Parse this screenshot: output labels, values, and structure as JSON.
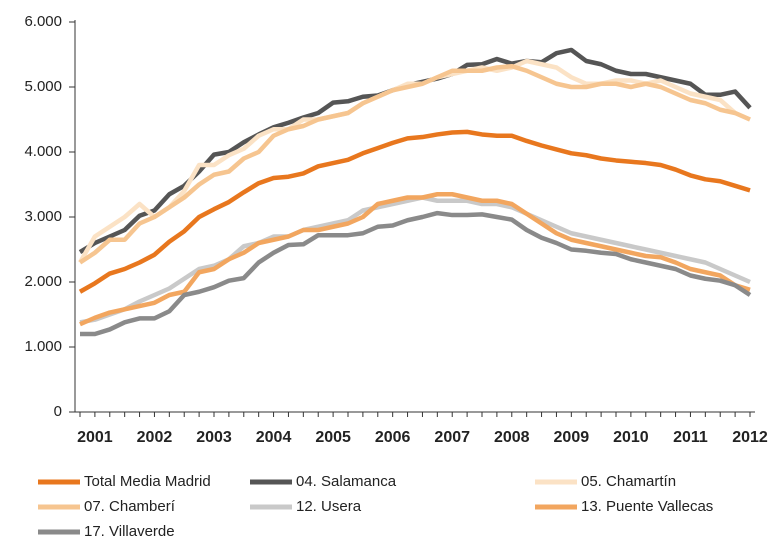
{
  "chart_data": {
    "type": "line",
    "categories": [
      null,
      "2001",
      null,
      null,
      null,
      "2002",
      null,
      null,
      null,
      "2003",
      null,
      null,
      null,
      "2004",
      null,
      null,
      null,
      "2005",
      null,
      null,
      null,
      "2006",
      null,
      null,
      null,
      "2007",
      null,
      null,
      null,
      "2008",
      null,
      null,
      null,
      "2009",
      null,
      null,
      null,
      "2010",
      null,
      null,
      null,
      "2011",
      null,
      null,
      null,
      "2012"
    ],
    "ylim": [
      0,
      6000
    ],
    "yticks": [
      0,
      {
        "value": 1000,
        "label": "1.000"
      },
      {
        "value": 2000,
        "label": "2.000"
      },
      {
        "value": 3000,
        "label": "3.000"
      },
      {
        "value": 4000,
        "label": "4.000"
      },
      {
        "value": 5000,
        "label": "5.000"
      },
      {
        "value": 6000,
        "label": "6.000"
      }
    ],
    "series": [
      {
        "name": "Total Media Madrid",
        "color": "#e8771e",
        "values": [
          1850,
          1980,
          2130,
          2200,
          2300,
          2420,
          2620,
          2780,
          3000,
          3120,
          3230,
          3380,
          3520,
          3600,
          3620,
          3670,
          3780,
          3830,
          3880,
          3980,
          4060,
          4140,
          4210,
          4230,
          4270,
          4300,
          4310,
          4270,
          4250,
          4250,
          4170,
          4100,
          4040,
          3980,
          3950,
          3900,
          3870,
          3850,
          3830,
          3800,
          3730,
          3640,
          3580,
          3550,
          3480,
          3410
        ]
      },
      {
        "name": "04. Salamanca",
        "color": "#555555",
        "values": [
          2460,
          2600,
          2700,
          2800,
          3020,
          3100,
          3350,
          3480,
          3700,
          3960,
          4000,
          4150,
          4270,
          4380,
          4450,
          4530,
          4600,
          4760,
          4780,
          4850,
          4870,
          4950,
          5030,
          5080,
          5130,
          5200,
          5340,
          5350,
          5430,
          5360,
          5400,
          5380,
          5520,
          5570,
          5400,
          5350,
          5250,
          5200,
          5200,
          5150,
          5100,
          5050,
          4880,
          4880,
          4930,
          4680
        ]
      },
      {
        "name": "05. Chamartín",
        "color": "#fbe2c5",
        "values": [
          2300,
          2700,
          2850,
          3000,
          3200,
          3000,
          3150,
          3400,
          3800,
          3800,
          3950,
          4050,
          4250,
          4350,
          4350,
          4500,
          4500,
          4550,
          4600,
          4750,
          4850,
          4950,
          5050,
          5050,
          5150,
          5200,
          5250,
          5300,
          5250,
          5300,
          5400,
          5350,
          5300,
          5150,
          5050,
          5050,
          5100,
          5100,
          5050,
          5100,
          5000,
          4900,
          4850,
          4800,
          4600,
          4500
        ]
      },
      {
        "name": "07. Chamberí",
        "color": "#f6c590",
        "values": [
          2300,
          2450,
          2650,
          2650,
          2900,
          3000,
          3150,
          3300,
          3500,
          3650,
          3700,
          3900,
          4000,
          4250,
          4350,
          4400,
          4500,
          4550,
          4600,
          4750,
          4850,
          4950,
          5000,
          5050,
          5150,
          5250,
          5250,
          5250,
          5300,
          5320,
          5250,
          5150,
          5050,
          5000,
          5000,
          5050,
          5050,
          5000,
          5050,
          5000,
          4900,
          4800,
          4750,
          4650,
          4600,
          4500
        ]
      },
      {
        "name": "12. Usera",
        "color": "#c9c9c9",
        "values": [
          1380,
          1420,
          1500,
          1580,
          1700,
          1800,
          1900,
          2050,
          2200,
          2250,
          2350,
          2550,
          2600,
          2700,
          2700,
          2800,
          2850,
          2900,
          2950,
          3100,
          3150,
          3200,
          3250,
          3300,
          3250,
          3250,
          3250,
          3200,
          3200,
          3150,
          3050,
          2950,
          2850,
          2750,
          2700,
          2650,
          2600,
          2550,
          2500,
          2450,
          2400,
          2350,
          2300,
          2200,
          2100,
          2000
        ]
      },
      {
        "name": "13. Puente Vallecas",
        "color": "#f2a65f",
        "values": [
          1350,
          1450,
          1530,
          1580,
          1630,
          1680,
          1800,
          1850,
          2150,
          2200,
          2350,
          2450,
          2600,
          2650,
          2700,
          2800,
          2800,
          2850,
          2900,
          3000,
          3200,
          3250,
          3300,
          3300,
          3350,
          3350,
          3300,
          3250,
          3250,
          3200,
          3050,
          2900,
          2750,
          2650,
          2600,
          2550,
          2500,
          2450,
          2400,
          2380,
          2300,
          2200,
          2150,
          2100,
          1950,
          1880
        ]
      },
      {
        "name": "17. Villaverde",
        "color": "#8a8a8a",
        "values": [
          1200,
          1200,
          1270,
          1380,
          1440,
          1440,
          1550,
          1800,
          1850,
          1920,
          2020,
          2060,
          2300,
          2450,
          2570,
          2580,
          2720,
          2720,
          2720,
          2750,
          2850,
          2870,
          2950,
          3000,
          3060,
          3030,
          3030,
          3040,
          3000,
          2960,
          2800,
          2680,
          2600,
          2500,
          2480,
          2450,
          2430,
          2350,
          2300,
          2250,
          2200,
          2100,
          2050,
          2020,
          1950,
          1800
        ]
      }
    ]
  }
}
